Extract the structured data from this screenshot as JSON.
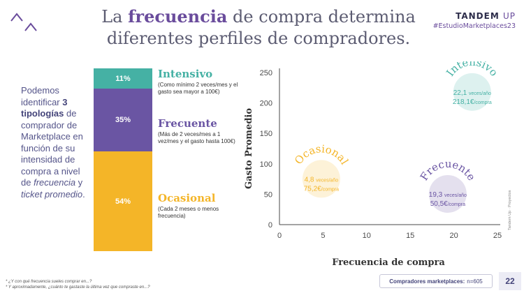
{
  "header": {
    "title_pre": "La ",
    "title_highlight": "frecuencia",
    "title_post": " de compra determina diferentes perfiles de compradores.",
    "brand_logo": "TANDEM",
    "brand_up": "UP",
    "hashtag": "#EstudioMarketplaces23"
  },
  "intro": {
    "p1": "Podemos identificar ",
    "p2": "3 tipologías",
    "p3": " de comprador de Marketplace en función de su intensidad de compra a nivel de ",
    "p4": "frecuencia",
    "p5": " y ",
    "p6": "ticket promedio",
    "p7": "."
  },
  "segments": [
    {
      "name": "Intensivo",
      "pct": "11%",
      "desc": "(Como mínimo 2 veces/mes y el gasto sea mayor a 100€)",
      "color": "#45b1a4"
    },
    {
      "name": "Frecuente",
      "pct": "35%",
      "desc": "(Más de 2 veces/mes a 1 vez/mes y el gasto hasta 100€)",
      "color": "#6a55a3"
    },
    {
      "name": "Ocasional",
      "pct": "54%",
      "desc": "(Cada 2 meses o menos frecuencia)",
      "color": "#f4b528"
    }
  ],
  "chart_data": [
    {
      "type": "bar",
      "categories": [
        "Intensivo",
        "Frecuente",
        "Ocasional"
      ],
      "values": [
        11,
        35,
        54
      ],
      "data_labels": [
        "11%",
        "35%",
        "54%"
      ],
      "stacked": true
    },
    {
      "type": "scatter",
      "xlabel": "Frecuencia de compra",
      "ylabel": "Gasto Promedio",
      "xlim": [
        0,
        25
      ],
      "ylim": [
        0,
        250
      ],
      "xticks": [
        0,
        5,
        10,
        15,
        20,
        25
      ],
      "yticks": [
        0,
        50,
        100,
        150,
        200,
        250
      ],
      "grid": false,
      "points": [
        {
          "label": "Intensivo",
          "x": 22.1,
          "y": 218.1,
          "freq": "22,1",
          "freq_unit": "veces/año",
          "spend": "218,1€",
          "spend_unit": "/compra",
          "color": "#45b1a4"
        },
        {
          "label": "Ocasional",
          "x": 4.8,
          "y": 75.2,
          "freq": "4,8",
          "freq_unit": "veces/año",
          "spend": "75,2€",
          "spend_unit": "/compra",
          "color": "#f4b528"
        },
        {
          "label": "Frecuente",
          "x": 19.3,
          "y": 50.5,
          "freq": "19,3",
          "freq_unit": "veces/año",
          "spend": "50,5€",
          "spend_unit": "/compra",
          "color": "#6a55a3"
        }
      ]
    }
  ],
  "footer": {
    "note1": "¿Y con qué frecuencia sueles comprar en...?",
    "note2": "Y aproximadamente, ¿cuánto te gastaste la última vez que compraste en...?",
    "sample_label": "Compradores marketplaces:",
    "sample_n": "n=605",
    "page": "22",
    "source": "Tandem Up · Proyectos"
  }
}
